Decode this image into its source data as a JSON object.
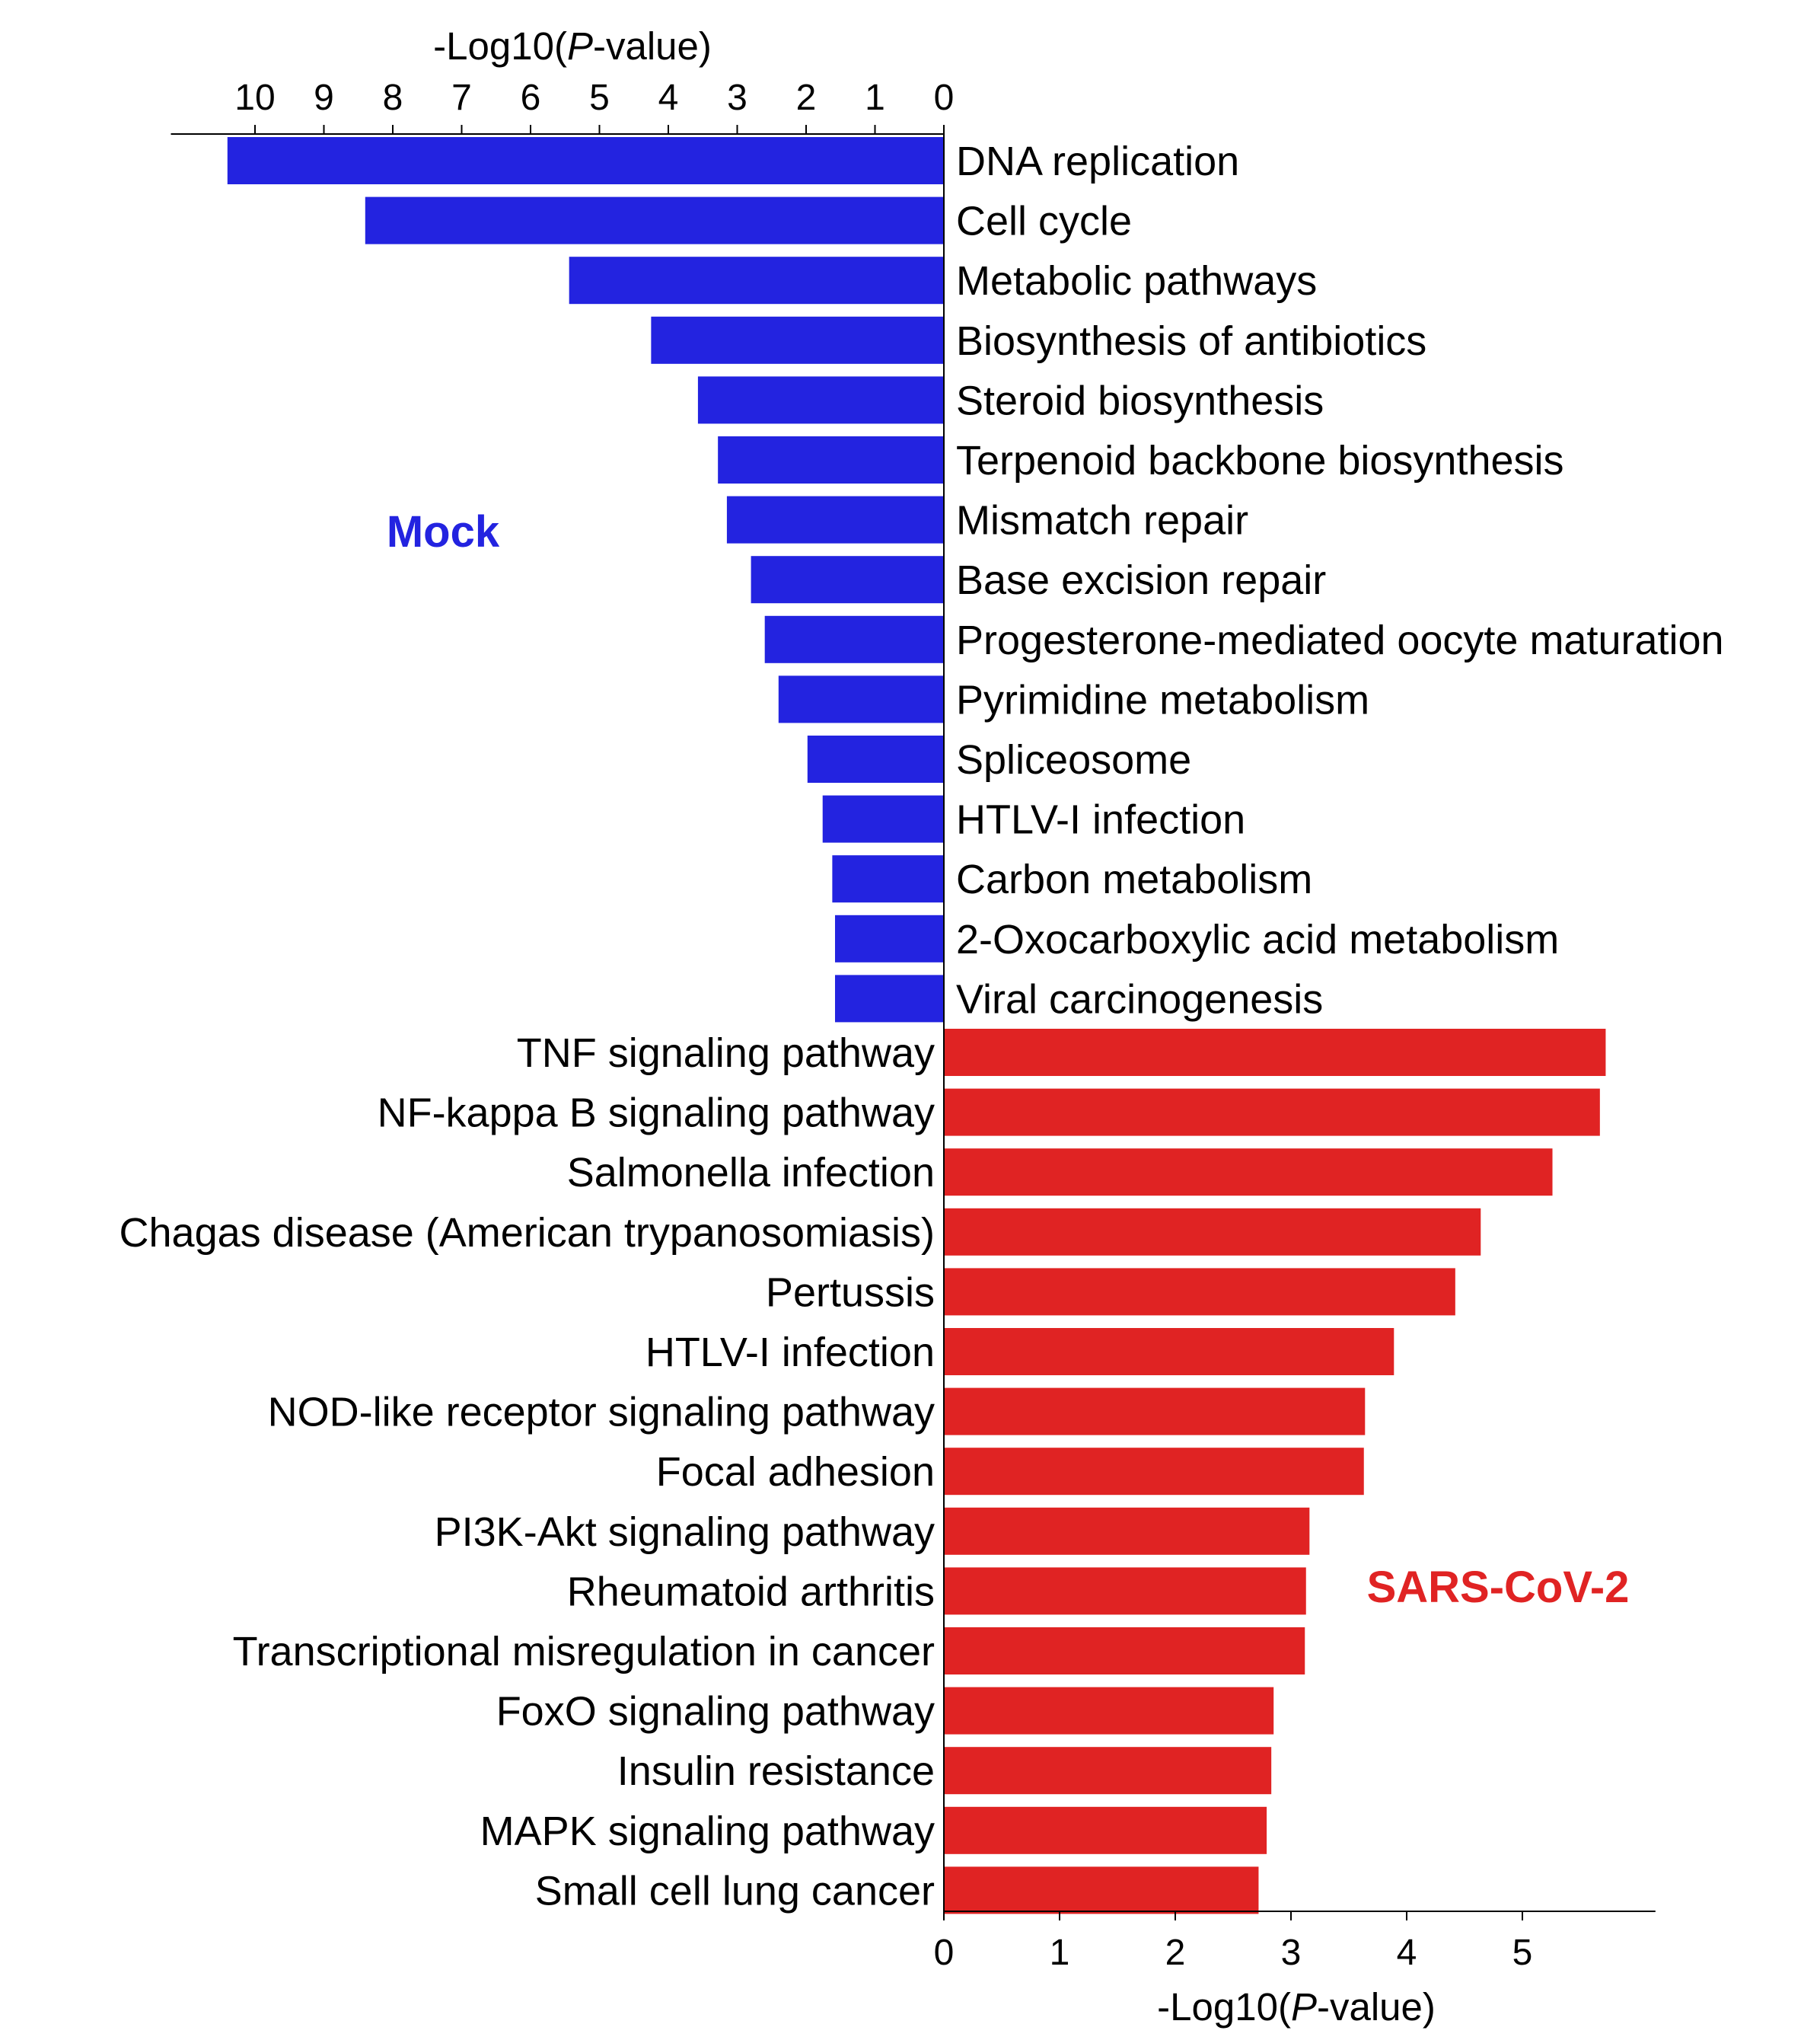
{
  "chart_data": [
    {
      "type": "bar",
      "orientation": "horizontal",
      "direction": "leftward",
      "group_label": "Mock",
      "color": "#2323e0",
      "axis_position": "top",
      "xlabel": {
        "prefix": "-Log10(",
        "italic": "P",
        "suffix": "-value)"
      },
      "xticks": [
        10,
        9,
        8,
        7,
        6,
        5,
        4,
        3,
        2,
        1,
        0
      ],
      "xlim": [
        0,
        11
      ],
      "categories": [
        "DNA replication",
        "Cell cycle",
        "Metabolic pathways",
        "Biosynthesis of antibiotics",
        "Steroid biosynthesis",
        "Terpenoid backbone biosynthesis",
        "Mismatch repair",
        "Base excision repair",
        "Progesterone-mediated oocyte maturation",
        "Pyrimidine metabolism",
        "Spliceosome",
        "HTLV-I infection",
        "Carbon metabolism",
        "2-Oxocarboxylic acid metabolism",
        "Viral carcinogenesis"
      ],
      "values": [
        10.4,
        8.4,
        5.44,
        4.25,
        3.57,
        3.28,
        3.15,
        2.8,
        2.6,
        2.4,
        1.98,
        1.76,
        1.62,
        1.58,
        1.58
      ]
    },
    {
      "type": "bar",
      "orientation": "horizontal",
      "direction": "rightward",
      "group_label": "SARS-CoV-2",
      "color": "#e02323",
      "axis_position": "bottom",
      "xlabel": {
        "prefix": "-Log10(",
        "italic": "P",
        "suffix": "-value)"
      },
      "xticks": [
        0,
        1,
        2,
        3,
        4,
        5
      ],
      "xlim": [
        0,
        6.15
      ],
      "categories": [
        "TNF signaling pathway",
        "NF-kappa B signaling pathway",
        "Salmonella infection",
        "Chagas disease (American trypanosomiasis)",
        "Pertussis",
        "HTLV-I infection",
        "NOD-like receptor signaling pathway",
        "Focal adhesion",
        "PI3K-Akt signaling pathway",
        "Rheumatoid arthritis",
        "Transcriptional misregulation in cancer",
        "FoxO signaling pathway",
        "Insulin resistance",
        "MAPK signaling pathway",
        "Small cell lung cancer"
      ],
      "values": [
        5.72,
        5.67,
        5.26,
        4.64,
        4.42,
        3.89,
        3.64,
        3.63,
        3.16,
        3.13,
        3.12,
        2.85,
        2.83,
        2.79,
        2.72
      ]
    }
  ]
}
